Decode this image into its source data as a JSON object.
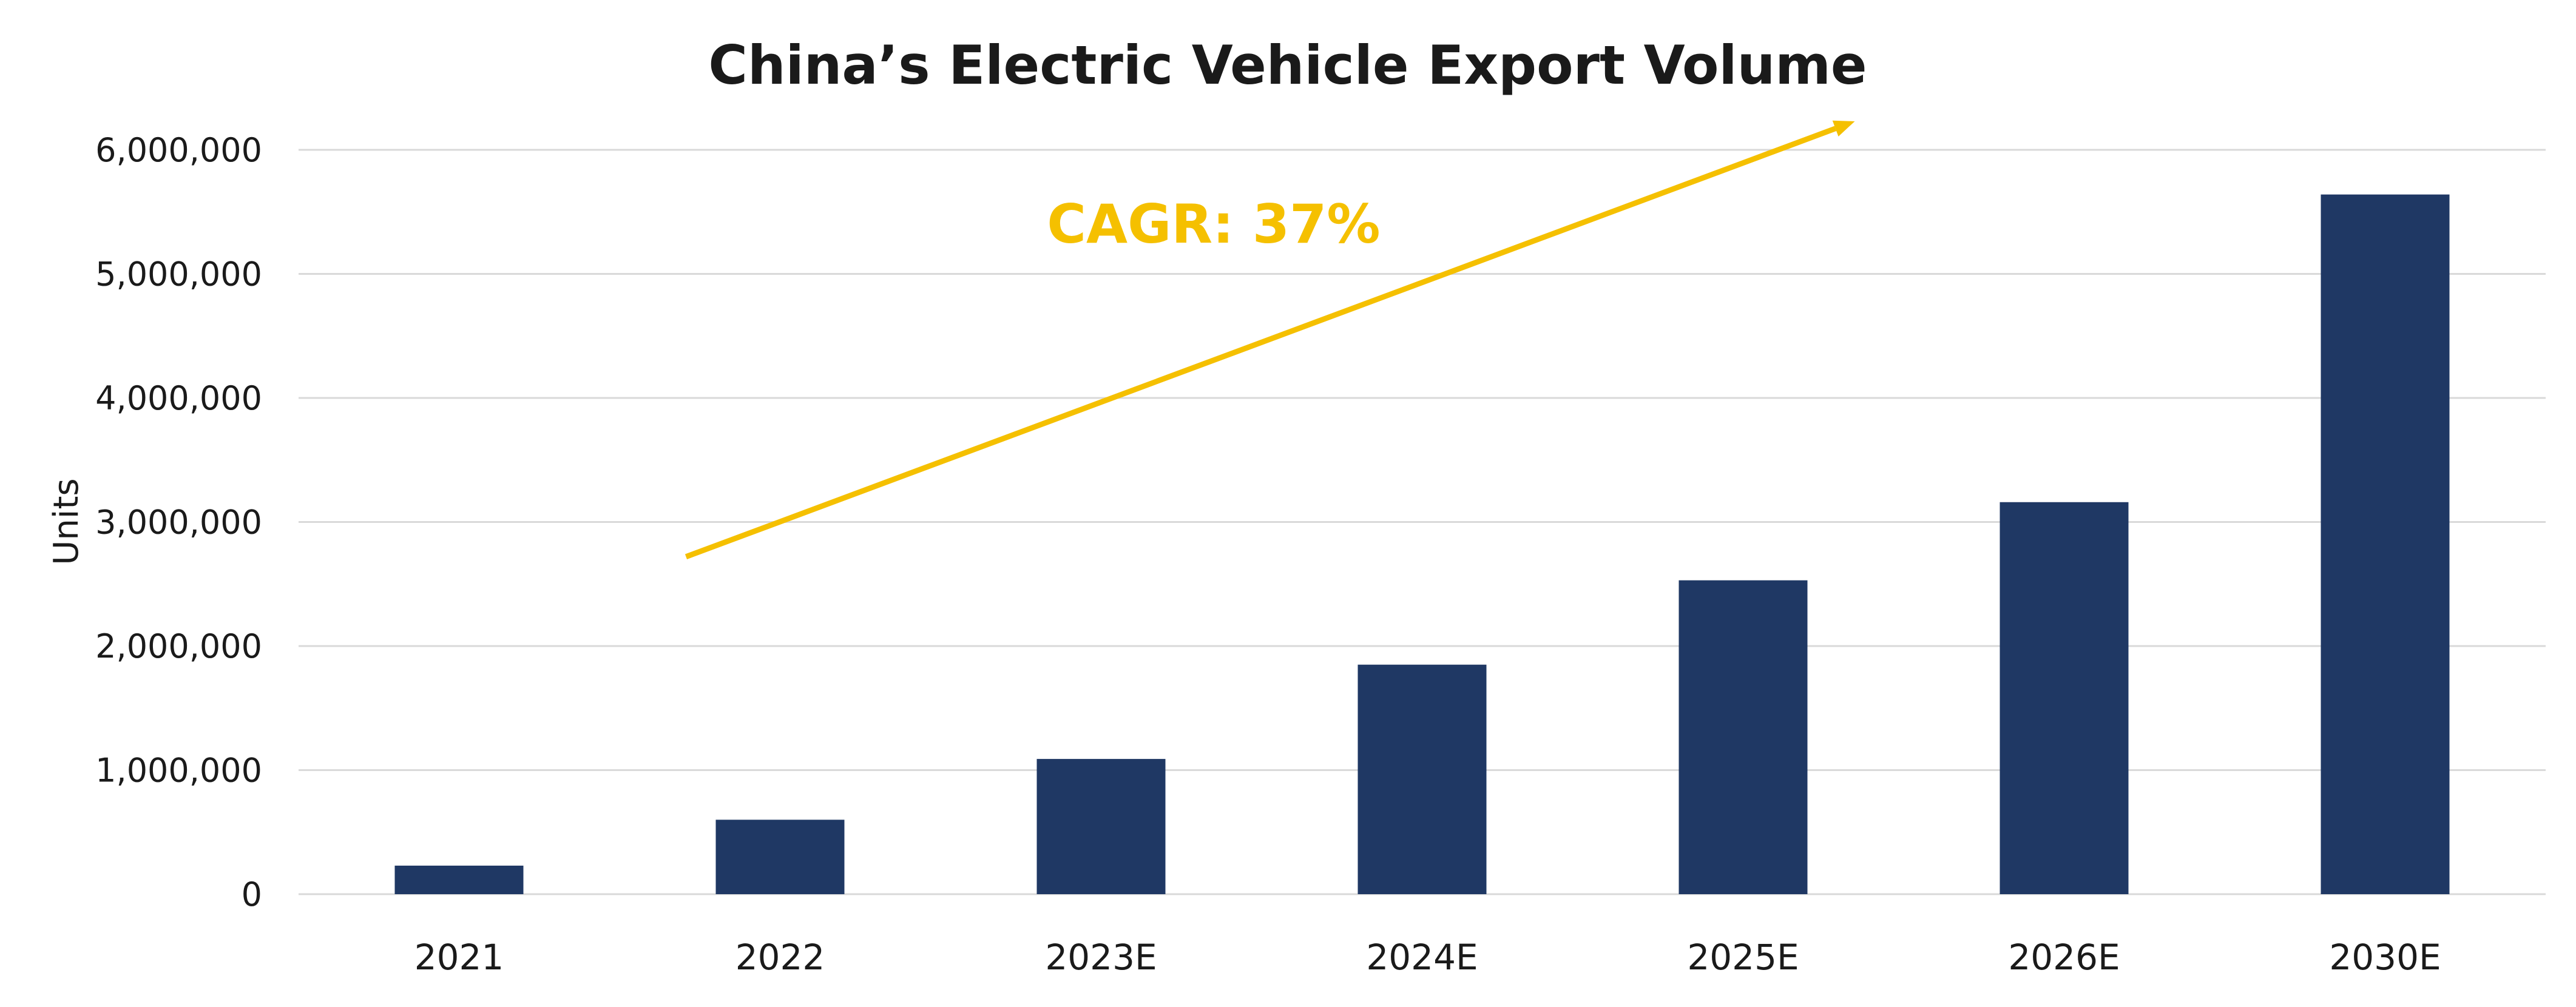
{
  "chart_data": {
    "type": "bar",
    "title": "China’s Electric Vehicle Export Volume",
    "xlabel": "",
    "ylabel": "Units",
    "categories": [
      "2021",
      "2022",
      "2023E",
      "2024E",
      "2025E",
      "2026E",
      "2030E"
    ],
    "values": [
      230000,
      600000,
      1090000,
      1850000,
      2530000,
      3160000,
      5640000
    ],
    "ylim": [
      0,
      6000000
    ],
    "yticks": [
      0,
      1000000,
      2000000,
      3000000,
      4000000,
      5000000,
      6000000
    ],
    "ytick_labels": [
      "0",
      "1,000,000",
      "2,000,000",
      "3,000,000",
      "4,000,000",
      "5,000,000",
      "6,000,000"
    ],
    "grid": true,
    "legend": "none",
    "annotation": {
      "text": "CAGR: 37%",
      "arrow_from": {
        "category": "2022",
        "value": 2720000
      },
      "arrow_to": {
        "category": "2026E",
        "value": 6230000
      }
    },
    "colors": {
      "bar": "#1f3864",
      "accent": "#f5c000",
      "grid": "#d9d9d9",
      "text": "#1a1a1a"
    }
  }
}
